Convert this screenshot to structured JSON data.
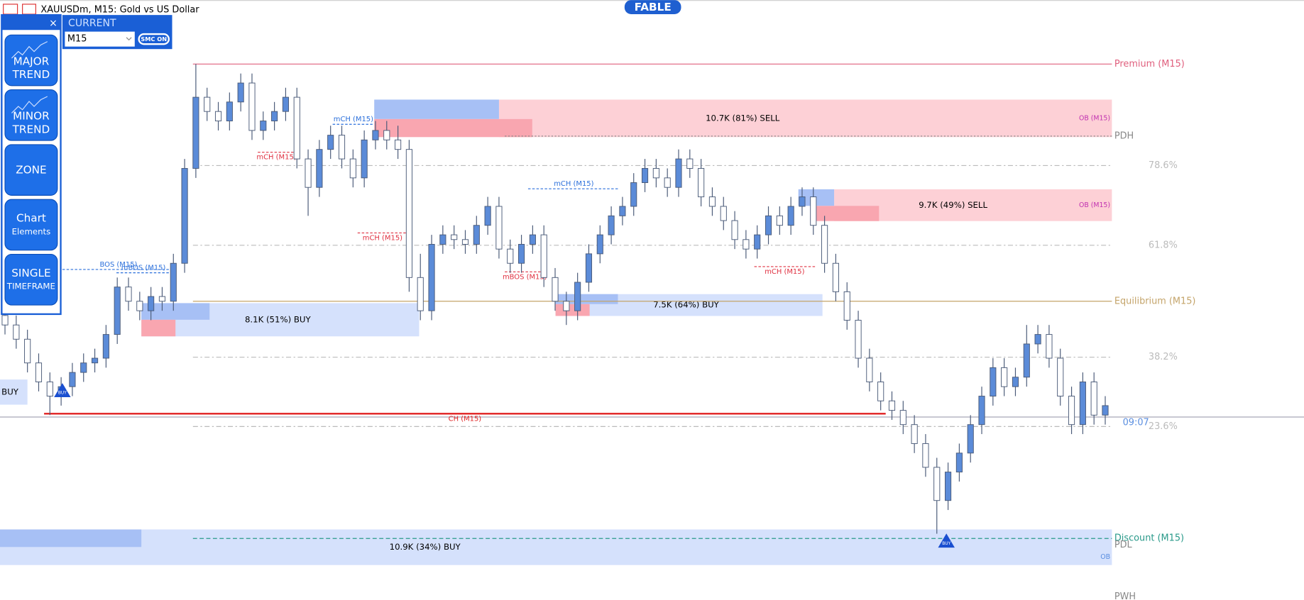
{
  "header": {
    "symbol": "XAUUSDm, M15:  Gold vs US Dollar",
    "brand": "FABLE"
  },
  "panel": {
    "close": "×",
    "buttons": [
      [
        "MAJOR",
        "TREND"
      ],
      [
        "MINOR",
        "TREND"
      ],
      [
        "ZONE"
      ],
      [
        "Chart",
        "Elements"
      ],
      [
        "SINGLE",
        "TIMEFRAME"
      ]
    ],
    "current_title": "CURRENT",
    "timeframe": "M15",
    "toggle": "SMC ON"
  },
  "chart_data": {
    "type": "candlestick",
    "ylim": [
      0,
      100
    ],
    "levels": [
      {
        "value": 100,
        "label": "Premium (M15)",
        "color": "#e0607e",
        "style": "solid"
      },
      {
        "value": 84.8,
        "label": "PDH",
        "color": "#888888",
        "style": "dotted"
      },
      {
        "value": 78.6,
        "label": "78.6%",
        "color": "#bbbbbb",
        "style": "dashdot"
      },
      {
        "value": 61.8,
        "label": "61.8%",
        "color": "#bbbbbb",
        "style": "dashdot"
      },
      {
        "value": 50,
        "label": "Equilibrium (M15)",
        "color": "#c4a46a",
        "style": "solid"
      },
      {
        "value": 38.2,
        "label": "38.2%",
        "color": "#bbbbbb",
        "style": "dashdot"
      },
      {
        "value": 23.6,
        "label": "23.6%",
        "color": "#bbbbbb",
        "style": "dashdot"
      },
      {
        "value": 0,
        "label": "Discount (M15)",
        "color": "#2a9a8a",
        "style": "dashed"
      },
      {
        "value": -1.4,
        "label": "PDL",
        "color": "#888888",
        "style": "none"
      },
      {
        "value": -12.3,
        "label": "PWH",
        "color": "#888888",
        "style": "none"
      }
    ],
    "price_line": {
      "value": 25.6,
      "label": "09:07"
    },
    "zones": [
      {
        "label": "10.7K (81%) SELL",
        "tag": "OB (M15)",
        "side": "sell",
        "top": 92.5,
        "mid": 88.4,
        "bottom": 84.6
      },
      {
        "label": "9.7K (49%) SELL",
        "tag": "OB (M15)",
        "side": "sell",
        "top": 73.6,
        "mid": 70.1,
        "bottom": 66.9
      },
      {
        "label": "8.1K (51%) BUY",
        "side": "buy",
        "top": 49.6,
        "mid": 46.1,
        "bottom": 42.6
      },
      {
        "label": "7.5K (64%) BUY",
        "side": "buy",
        "top": 51.5,
        "mid": 49.4,
        "bottom": 46.9
      },
      {
        "label": "10.9K (34%) BUY",
        "tag": "OB",
        "side": "buy",
        "top": 1.9,
        "mid": -1.8,
        "bottom": -5.6
      },
      {
        "label": "BUY",
        "side": "buy",
        "top": 33.5,
        "bottom": 28.2
      }
    ],
    "structure": [
      {
        "text": "mCH (M15)",
        "level": 87.3,
        "color": "#2a6fdb"
      },
      {
        "text": "mCH (M15)",
        "level": 81.4,
        "color": "#e03040"
      },
      {
        "text": "mCH (M15)",
        "level": 64.4,
        "color": "#e03040"
      },
      {
        "text": "mCH (M15)",
        "level": 73.7,
        "color": "#2a6fdb"
      },
      {
        "text": "mBOS (M15)",
        "level": 56.2,
        "color": "#e03040"
      },
      {
        "text": "mCH (M15)",
        "level": 57.3,
        "color": "#e03040"
      },
      {
        "text": "BOS (M15)",
        "level": 56.7,
        "color": "#2a6fdb"
      },
      {
        "text": "mBOS (M15)",
        "level": 56.0,
        "color": "#2a6fdb"
      },
      {
        "text": "CH (M15)",
        "level": 26.3,
        "color": "#e02020"
      }
    ],
    "signals": [
      {
        "label": "BUY",
        "level": 31
      },
      {
        "label": "BUY",
        "level": -0.7
      }
    ],
    "candles": [
      [
        47,
        49,
        43,
        45
      ],
      [
        45,
        47,
        40,
        42
      ],
      [
        42,
        44,
        35,
        37
      ],
      [
        37,
        39,
        31,
        33
      ],
      [
        33,
        35,
        26,
        30
      ],
      [
        30,
        34,
        28,
        32
      ],
      [
        32,
        37,
        30,
        35
      ],
      [
        35,
        39,
        33,
        37
      ],
      [
        37,
        40,
        35,
        38
      ],
      [
        38,
        45,
        36,
        43
      ],
      [
        43,
        55,
        41,
        53
      ],
      [
        53,
        55,
        48,
        50
      ],
      [
        50,
        52,
        46,
        48
      ],
      [
        48,
        53,
        46,
        51
      ],
      [
        51,
        53,
        48,
        50
      ],
      [
        50,
        60,
        48,
        58
      ],
      [
        58,
        80,
        56,
        78
      ],
      [
        78,
        100,
        76,
        93
      ],
      [
        93,
        95,
        88,
        90
      ],
      [
        90,
        92,
        86,
        88
      ],
      [
        88,
        94,
        86,
        92
      ],
      [
        92,
        98,
        90,
        96
      ],
      [
        96,
        98,
        84,
        86
      ],
      [
        86,
        90,
        84,
        88
      ],
      [
        88,
        92,
        86,
        90
      ],
      [
        90,
        95,
        88,
        93
      ],
      [
        93,
        95,
        78,
        80
      ],
      [
        80,
        82,
        68,
        74
      ],
      [
        74,
        84,
        72,
        82
      ],
      [
        82,
        87,
        80,
        85
      ],
      [
        85,
        87,
        78,
        80
      ],
      [
        80,
        82,
        74,
        76
      ],
      [
        76,
        86,
        74,
        84
      ],
      [
        84,
        88,
        82,
        86
      ],
      [
        86,
        88,
        82,
        84
      ],
      [
        84,
        87,
        80,
        82
      ],
      [
        82,
        84,
        52,
        55
      ],
      [
        55,
        60,
        46,
        48
      ],
      [
        48,
        64,
        46,
        62
      ],
      [
        62,
        66,
        60,
        64
      ],
      [
        64,
        66,
        61,
        63
      ],
      [
        63,
        65,
        60,
        62
      ],
      [
        62,
        68,
        60,
        66
      ],
      [
        66,
        72,
        64,
        70
      ],
      [
        70,
        72,
        59,
        61
      ],
      [
        61,
        63,
        56,
        58
      ],
      [
        58,
        64,
        56,
        62
      ],
      [
        62,
        66,
        60,
        64
      ],
      [
        64,
        66,
        53,
        55
      ],
      [
        55,
        57,
        48,
        50
      ],
      [
        50,
        52,
        45,
        48
      ],
      [
        48,
        56,
        46,
        54
      ],
      [
        54,
        62,
        52,
        60
      ],
      [
        60,
        66,
        58,
        64
      ],
      [
        64,
        70,
        62,
        68
      ],
      [
        68,
        72,
        66,
        70
      ],
      [
        70,
        77,
        68,
        75
      ],
      [
        75,
        80,
        73,
        78
      ],
      [
        78,
        80,
        74,
        76
      ],
      [
        76,
        78,
        72,
        74
      ],
      [
        74,
        82,
        72,
        80
      ],
      [
        80,
        82,
        76,
        78
      ],
      [
        78,
        80,
        70,
        72
      ],
      [
        72,
        74,
        68,
        70
      ],
      [
        70,
        72,
        65,
        67
      ],
      [
        67,
        69,
        61,
        63
      ],
      [
        63,
        65,
        59,
        61
      ],
      [
        61,
        66,
        59,
        64
      ],
      [
        64,
        70,
        62,
        68
      ],
      [
        68,
        70,
        64,
        66
      ],
      [
        66,
        72,
        64,
        70
      ],
      [
        70,
        74,
        68,
        72
      ],
      [
        72,
        74,
        64,
        66
      ],
      [
        66,
        68,
        56,
        58
      ],
      [
        58,
        60,
        50,
        52
      ],
      [
        52,
        54,
        44,
        46
      ],
      [
        46,
        48,
        36,
        38
      ],
      [
        38,
        40,
        31,
        33
      ],
      [
        33,
        35,
        27,
        29
      ],
      [
        29,
        31,
        25,
        27
      ],
      [
        27,
        29,
        22,
        24
      ],
      [
        24,
        26,
        18,
        20
      ],
      [
        20,
        22,
        13,
        15
      ],
      [
        15,
        17,
        1,
        8
      ],
      [
        8,
        16,
        6,
        14
      ],
      [
        14,
        20,
        12,
        18
      ],
      [
        18,
        26,
        16,
        24
      ],
      [
        24,
        32,
        22,
        30
      ],
      [
        30,
        38,
        28,
        36
      ],
      [
        36,
        38,
        30,
        32
      ],
      [
        32,
        36,
        30,
        34
      ],
      [
        34,
        45,
        32,
        41
      ],
      [
        41,
        45,
        39,
        43
      ],
      [
        43,
        45,
        36,
        38
      ],
      [
        38,
        40,
        28,
        30
      ],
      [
        30,
        32,
        22,
        24
      ],
      [
        24,
        35,
        22,
        33
      ],
      [
        33,
        35,
        24,
        26
      ],
      [
        26,
        30,
        24,
        28
      ]
    ]
  }
}
